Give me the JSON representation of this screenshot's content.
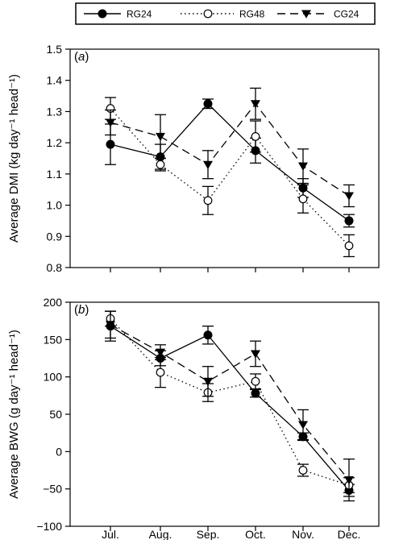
{
  "chart_data": {
    "type": "line",
    "categories": [
      "Jul.",
      "Aug.",
      "Sep.",
      "Oct.",
      "Nov.",
      "Dec."
    ],
    "legend": {
      "placement": "top",
      "entries": [
        {
          "name": "RG24",
          "line_style": "solid",
          "marker": "filled-circle"
        },
        {
          "name": "RG48",
          "line_style": "dotted",
          "marker": "open-circle"
        },
        {
          "name": "CG24",
          "line_style": "dashed",
          "marker": "filled-triangle-down"
        }
      ]
    },
    "panels": [
      {
        "label_prefix": "(",
        "label_letter": "a",
        "label_suffix": ")",
        "ylabel": "Average DMI (kg day⁻¹ head⁻¹)",
        "ylim": [
          0.8,
          1.5
        ],
        "yticks": [
          "0.8",
          "0.9",
          "1.0",
          "1.1",
          "1.2",
          "1.3",
          "1.4",
          "1.5"
        ],
        "series": [
          {
            "name": "RG24",
            "values": [
              1.195,
              1.155,
              1.325,
              1.175,
              1.055,
              0.95
            ],
            "errors": [
              0.065,
              0.04,
              0.015,
              0.04,
              0.03,
              0.02
            ]
          },
          {
            "name": "RG48",
            "values": [
              1.31,
              1.13,
              1.015,
              1.22,
              1.02,
              0.87
            ],
            "errors": [
              0.035,
              0.02,
              0.045,
              0.05,
              0.045,
              0.035
            ]
          },
          {
            "name": "CG24",
            "values": [
              1.265,
              1.22,
              1.13,
              1.325,
              1.125,
              1.03
            ],
            "errors": [
              0.04,
              0.07,
              0.045,
              0.05,
              0.055,
              0.035
            ]
          }
        ]
      },
      {
        "label_prefix": "(",
        "label_letter": "b",
        "label_suffix": ")",
        "ylabel": "Average BWG (g day⁻¹ head⁻¹)",
        "ylim": [
          -100,
          200
        ],
        "yticks": [
          "−100",
          "−50",
          "0",
          "50",
          "100",
          "150",
          "200"
        ],
        "series": [
          {
            "name": "RG24",
            "values": [
              168,
              125,
              156,
              78,
              20,
              -52
            ],
            "errors": [
              20,
              10,
              12,
              5,
              5,
              8
            ]
          },
          {
            "name": "RG48",
            "values": [
              178,
              106,
              79,
              94,
              -25,
              -45
            ],
            "errors": [
              10,
              20,
              12,
              10,
              8,
              10
            ]
          },
          {
            "name": "CG24",
            "values": [
              170,
              133,
              94,
              131,
              36,
              -38
            ],
            "errors": [
              18,
              10,
              20,
              17,
              20,
              28
            ]
          }
        ]
      }
    ]
  }
}
